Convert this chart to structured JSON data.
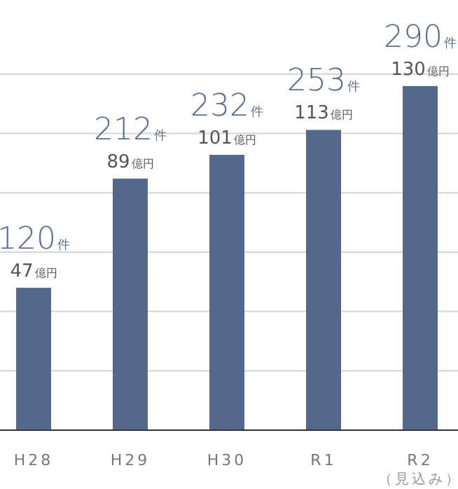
{
  "chart_data": {
    "type": "bar",
    "categories": [
      "H28",
      "H29",
      "H30",
      "R1",
      "R2（見込み）"
    ],
    "values": [
      120,
      212,
      232,
      253,
      290
    ],
    "color": "#53688a",
    "value_labels": [
      "120件",
      "212件",
      "232件",
      "253件",
      "290件"
    ],
    "annotations": [
      {
        "text": "47億円",
        "x": "H28",
        "y": 120
      },
      {
        "text": "89億円",
        "x": "H29",
        "y": 212
      },
      {
        "text": "101億円",
        "x": "H30",
        "y": 232
      },
      {
        "text": "113億円",
        "x": "R1",
        "y": 253
      },
      {
        "text": "130億円",
        "x": "R2（見込み）",
        "y": 290
      }
    ],
    "yticks": [
      {
        "value": 50,
        "label": null
      },
      {
        "value": 100,
        "label": null
      },
      {
        "value": 150,
        "label": null
      },
      {
        "value": 200,
        "label": null
      },
      {
        "value": 250,
        "label": null
      },
      {
        "value": 300,
        "label": null
      }
    ],
    "grid": "y"
  }
}
